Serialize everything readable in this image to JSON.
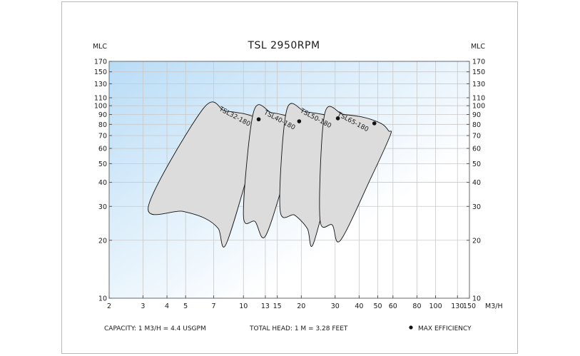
{
  "chart_data": {
    "type": "area",
    "title": "TSL 2950RPM",
    "ylabel_left": "MLC",
    "ylabel_right": "MLC",
    "xlabel": "M3/H",
    "x_scale": "log",
    "y_scale": "log",
    "xlim": [
      2,
      150
    ],
    "ylim": [
      10,
      170
    ],
    "x_ticks": [
      2,
      3,
      4,
      5,
      7,
      10,
      13,
      15,
      20,
      30,
      40,
      50,
      60,
      80,
      100,
      130,
      150
    ],
    "y_ticks": [
      10,
      20,
      30,
      40,
      50,
      60,
      70,
      80,
      90,
      100,
      110,
      130,
      150,
      170
    ],
    "grid": true,
    "background": {
      "top_left": "#b8dcf6",
      "bottom_right": "#ffffff"
    },
    "area_fill": "#dcdcdc",
    "area_stroke": "#111111",
    "series": [
      {
        "name": "TSL32-180",
        "outline": [
          [
            6.2,
            97
          ],
          [
            8,
            94
          ],
          [
            10,
            91
          ],
          [
            11.5,
            87
          ],
          [
            12.5,
            82
          ],
          [
            12.5,
            80
          ],
          [
            10.8,
            48
          ],
          [
            8.1,
            19
          ],
          [
            7.4,
            23
          ],
          [
            6.3,
            26
          ],
          [
            4.8,
            28.3
          ],
          [
            3.2,
            30
          ]
        ],
        "max_efficiency": [
          12,
          85
        ]
      },
      {
        "name": "TSL40-180",
        "outline": [
          [
            11.3,
            93
          ],
          [
            14,
            92
          ],
          [
            16.5,
            89
          ],
          [
            18.5,
            85
          ],
          [
            19.5,
            80
          ],
          [
            19.5,
            76
          ],
          [
            16.5,
            43
          ],
          [
            13,
            21
          ],
          [
            11.5,
            25
          ],
          [
            10,
            27.2
          ]
        ],
        "max_efficiency": [
          19.5,
          83
        ]
      },
      {
        "name": "TSL50-180",
        "outline": [
          [
            16.8,
            95
          ],
          [
            21,
            93
          ],
          [
            26,
            90
          ],
          [
            30.5,
            86
          ],
          [
            33.5,
            81
          ],
          [
            33.5,
            78
          ],
          [
            28.5,
            42
          ],
          [
            23,
            19
          ],
          [
            21.5,
            23
          ],
          [
            18.5,
            27
          ],
          [
            15.5,
            29
          ]
        ],
        "max_efficiency": [
          31,
          86
        ]
      },
      {
        "name": "TSL65-180",
        "outline": [
          [
            26.5,
            91
          ],
          [
            33,
            90
          ],
          [
            40,
            88
          ],
          [
            46,
            85
          ],
          [
            53,
            80
          ],
          [
            57,
            74
          ],
          [
            58,
            70
          ],
          [
            46,
            42
          ],
          [
            32,
            20
          ],
          [
            29,
            24
          ],
          [
            25,
            26
          ]
        ],
        "max_efficiency": [
          48,
          81
        ]
      }
    ],
    "annotations": [
      "CAPACITY: 1 M3/H = 4.4 USGPM",
      "TOTAL HEAD: 1 M = 3.28 FEET",
      "MAX EFFICIENCY"
    ]
  }
}
